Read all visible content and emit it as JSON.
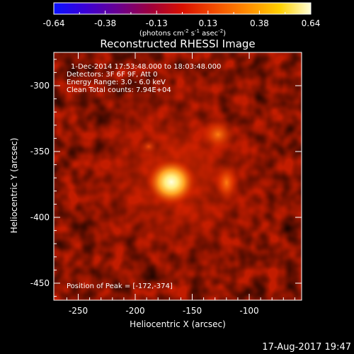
{
  "colorbar": {
    "tick_labels": [
      "-0.64",
      "-0.38",
      "-0.13",
      "0.13",
      "0.38",
      "0.64"
    ],
    "units": "(photons cm",
    "units_exp1": "-2",
    "units_mid": " s",
    "units_exp2": "-1",
    "units_mid2": " asec",
    "units_exp3": "-2",
    "units_end": ")",
    "colormap": "red-temperature"
  },
  "plot": {
    "title": "Reconstructed RHESSI Image",
    "xlabel": "Heliocentric X (arcsec)",
    "ylabel": "Heliocentric Y (arcsec)",
    "x_ticks": [
      "-250",
      "-200",
      "-150",
      "-100"
    ],
    "y_ticks": [
      "-300",
      "-350",
      "-400",
      "-450"
    ],
    "annotations": {
      "time_range": "1-Dec-2014 17:53:48.000 to 18:03:48.000",
      "detectors": "Detectors: 3F 6F 9F, Att 0",
      "energy": "Energy Range: 3.0 - 6.0 keV",
      "clean": "Clean    Total counts: 7.94E+04",
      "peak": "Position of Peak = [-172,-374]"
    }
  },
  "footer": {
    "timestamp": "17-Aug-2017 19:47"
  }
}
